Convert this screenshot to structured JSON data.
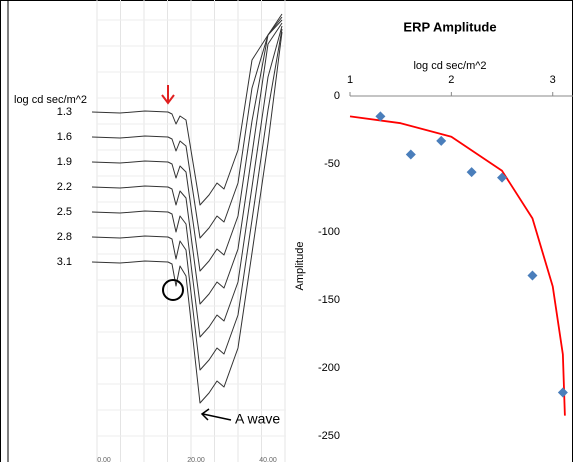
{
  "left_panel": {
    "axis_label": "log cd sec/m^2",
    "intensities": [
      "1.3",
      "1.6",
      "1.9",
      "2.2",
      "2.5",
      "2.8",
      "3.1"
    ],
    "annotation": "A wave",
    "time_ticks": [
      "0.00",
      "20.00",
      "40.00"
    ]
  },
  "chart_data": {
    "type": "scatter",
    "title": "ERP Amplitude",
    "x_label": "log cd sec/m^2",
    "y_label": "Amplitude",
    "x": [
      1.3,
      1.6,
      1.9,
      2.2,
      2.5,
      2.8,
      3.1
    ],
    "series": [
      {
        "color": "#4a7ebb",
        "values": [
          -15,
          -43,
          -33,
          -56,
          -60,
          -132,
          -218
        ]
      }
    ],
    "trendline": {
      "color": "#ff0000",
      "x": [
        1,
        1.5,
        2,
        2.5,
        2.8,
        3,
        3.1,
        3.12
      ],
      "values": [
        -15,
        -20,
        -30,
        -55,
        -90,
        -140,
        -190,
        -235
      ]
    },
    "xlim": [
      1,
      3.2
    ],
    "xticks": [
      1,
      2,
      3
    ],
    "ylim": [
      -250,
      0
    ],
    "yticks": [
      0,
      -50,
      -100,
      -150,
      -200,
      -250
    ],
    "x_axis_position": "top",
    "grid": false
  }
}
